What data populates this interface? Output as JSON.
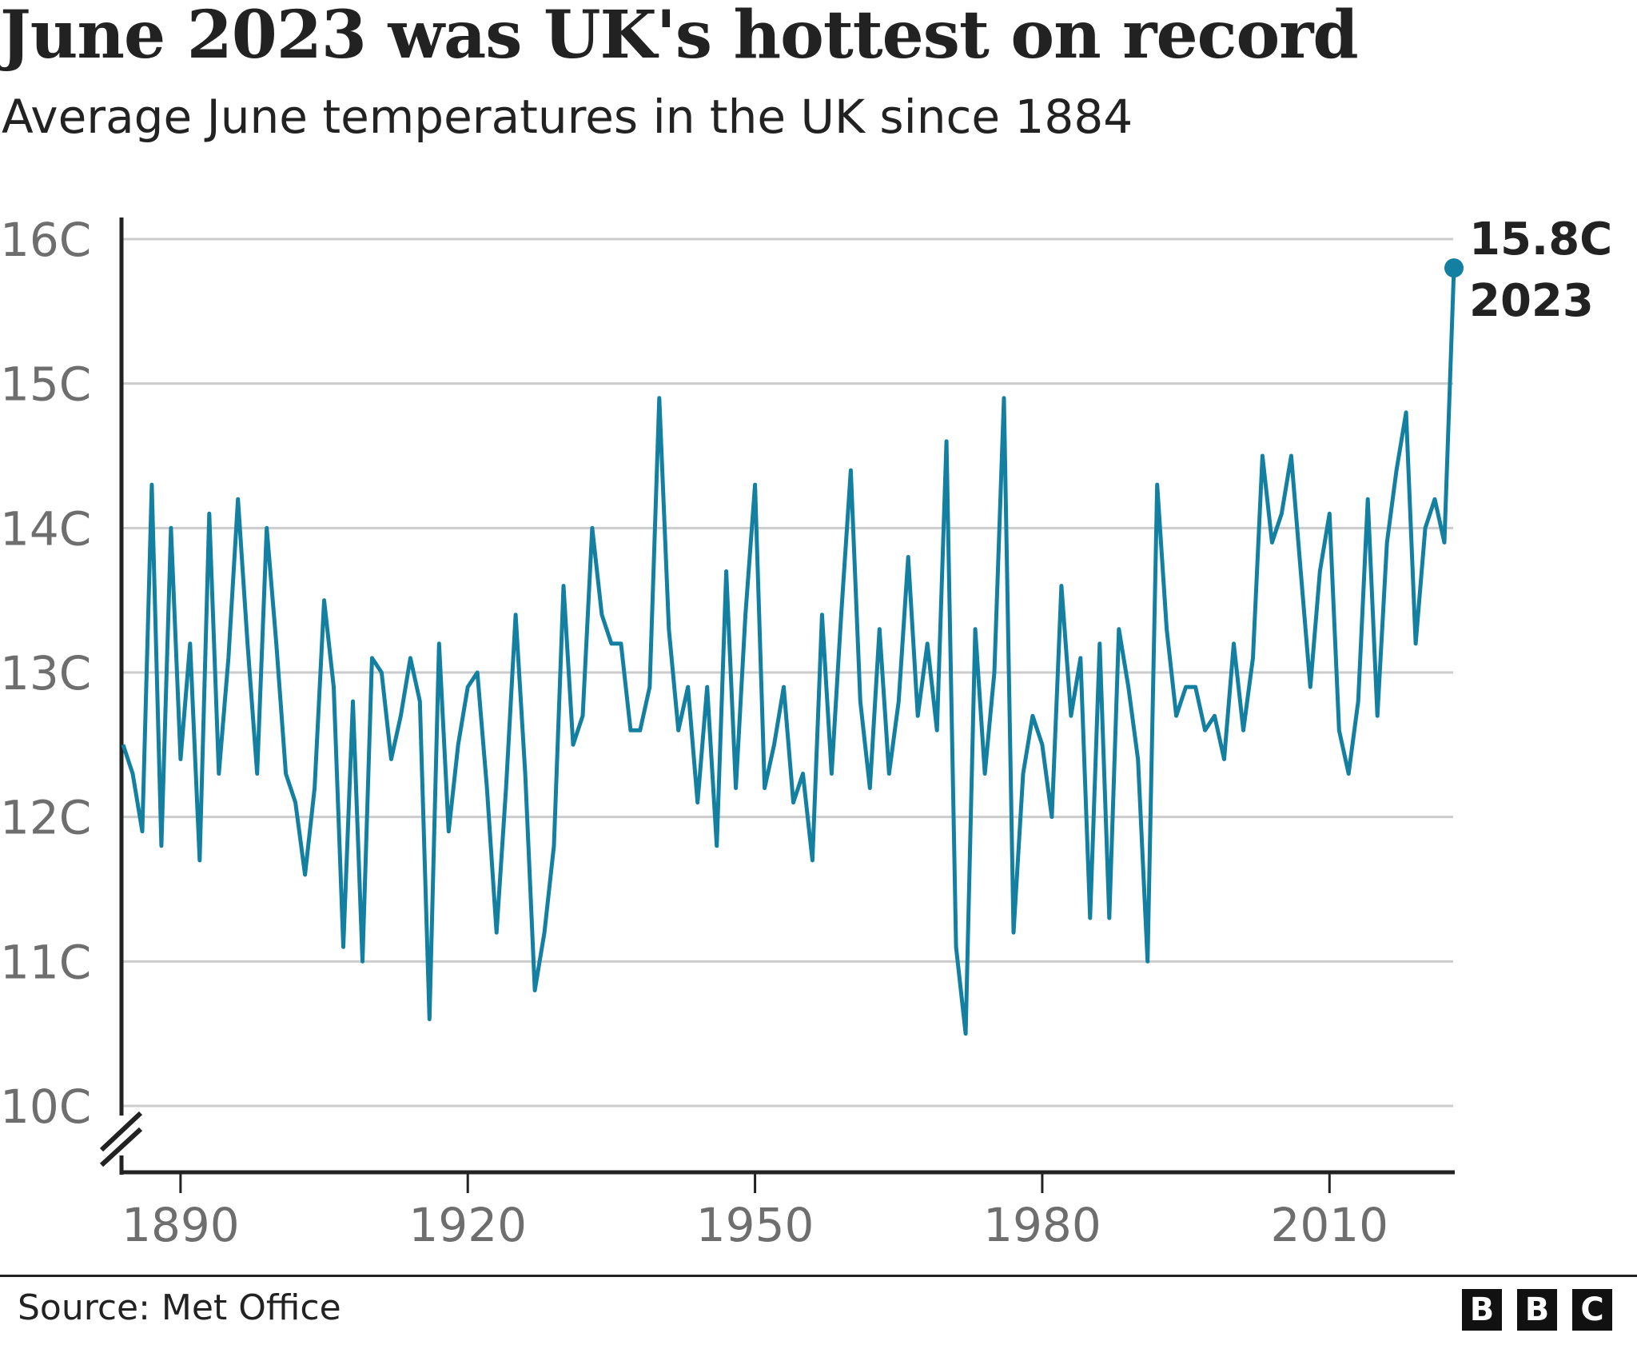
{
  "title": "June 2023 was UK's hottest on record",
  "subtitle": "Average June temperatures in the UK since 1884",
  "source": "Source: Met Office",
  "logo": [
    "B",
    "B",
    "C"
  ],
  "colors": {
    "line": "#1380A1",
    "text": "#222222",
    "axis_label": "#6E6E6E",
    "grid": "#CCCCCC"
  },
  "chart_data": {
    "type": "line",
    "title": "June 2023 was UK's hottest on record",
    "subtitle": "Average June temperatures in the UK since 1884",
    "xlabel": "",
    "ylabel": "",
    "xlim": [
      1884,
      2023
    ],
    "ylim": [
      10,
      16
    ],
    "y_axis_break": true,
    "grid": "horizontal",
    "x_ticks": [
      1890,
      1920,
      1950,
      1980,
      2010
    ],
    "x_tick_labels": [
      "1890",
      "1920",
      "1950",
      "1980",
      "2010"
    ],
    "y_ticks": [
      10,
      11,
      12,
      13,
      14,
      15,
      16
    ],
    "y_tick_labels": [
      "10C",
      "11C",
      "12C",
      "13C",
      "14C",
      "15C",
      "16C"
    ],
    "start_year": 1884,
    "values": [
      12.5,
      12.3,
      11.9,
      14.3,
      11.8,
      14.0,
      12.4,
      13.2,
      11.7,
      14.1,
      12.3,
      13.1,
      14.2,
      13.2,
      12.3,
      14.0,
      13.2,
      12.3,
      12.1,
      11.6,
      12.2,
      13.5,
      12.9,
      11.1,
      12.8,
      11.0,
      13.1,
      13.0,
      12.4,
      12.7,
      13.1,
      12.8,
      10.6,
      13.2,
      11.9,
      12.5,
      12.9,
      13.0,
      12.2,
      11.2,
      12.2,
      13.4,
      12.3,
      10.8,
      11.2,
      11.8,
      13.6,
      12.5,
      12.7,
      14.0,
      13.4,
      13.2,
      13.2,
      12.6,
      12.6,
      12.9,
      14.9,
      13.3,
      12.6,
      12.9,
      12.1,
      12.9,
      11.8,
      13.7,
      12.2,
      13.4,
      14.3,
      12.2,
      12.5,
      12.9,
      12.1,
      12.3,
      11.7,
      13.4,
      12.3,
      13.4,
      14.4,
      12.8,
      12.2,
      13.3,
      12.3,
      12.8,
      13.8,
      12.7,
      13.2,
      12.6,
      14.6,
      11.1,
      10.5,
      13.3,
      12.3,
      13.0,
      14.9,
      11.2,
      12.3,
      12.7,
      12.5,
      12.0,
      13.6,
      12.7,
      13.1,
      11.3,
      13.2,
      11.3,
      13.3,
      12.9,
      12.4,
      11.0,
      14.3,
      13.3,
      12.7,
      12.9,
      12.9,
      12.6,
      12.7,
      12.4,
      13.2,
      12.6,
      13.1,
      14.5,
      13.9,
      14.1,
      14.5,
      13.7,
      12.9,
      13.7,
      14.1,
      12.6,
      12.3,
      12.8,
      14.2,
      12.7,
      13.9,
      14.4,
      14.8,
      13.2,
      14.0,
      14.2,
      13.9,
      15.8
    ],
    "annotation": {
      "value_label": "15.8C",
      "year_label": "2023"
    }
  }
}
